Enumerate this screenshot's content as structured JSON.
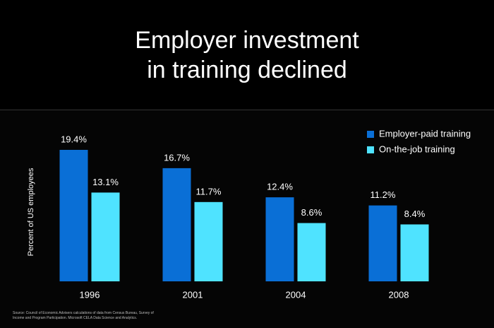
{
  "chart_data": {
    "type": "bar",
    "title": "Employer investment in training declined",
    "y_label": "Percent of US employees",
    "source": "Source: Council of Economic Advisers calculations of data from Census Bureau, Survey of Income and Program Participation. Microsoft CELA Data Science and Analytics.",
    "categories": [
      "1996",
      "2001",
      "2004",
      "2008"
    ],
    "series": [
      {
        "name": "Employer-paid training",
        "color": "#0a6fd6",
        "values": [
          19.4,
          16.7,
          12.4,
          11.2
        ],
        "value_labels": [
          "19.4%",
          "16.7%",
          "12.4%",
          "11.2%"
        ]
      },
      {
        "name": "On-the-job training",
        "color": "#4fe3ff",
        "values": [
          13.1,
          11.7,
          8.6,
          8.4
        ],
        "value_labels": [
          "13.1%",
          "11.7%",
          "8.6%",
          "8.4%"
        ]
      }
    ]
  }
}
